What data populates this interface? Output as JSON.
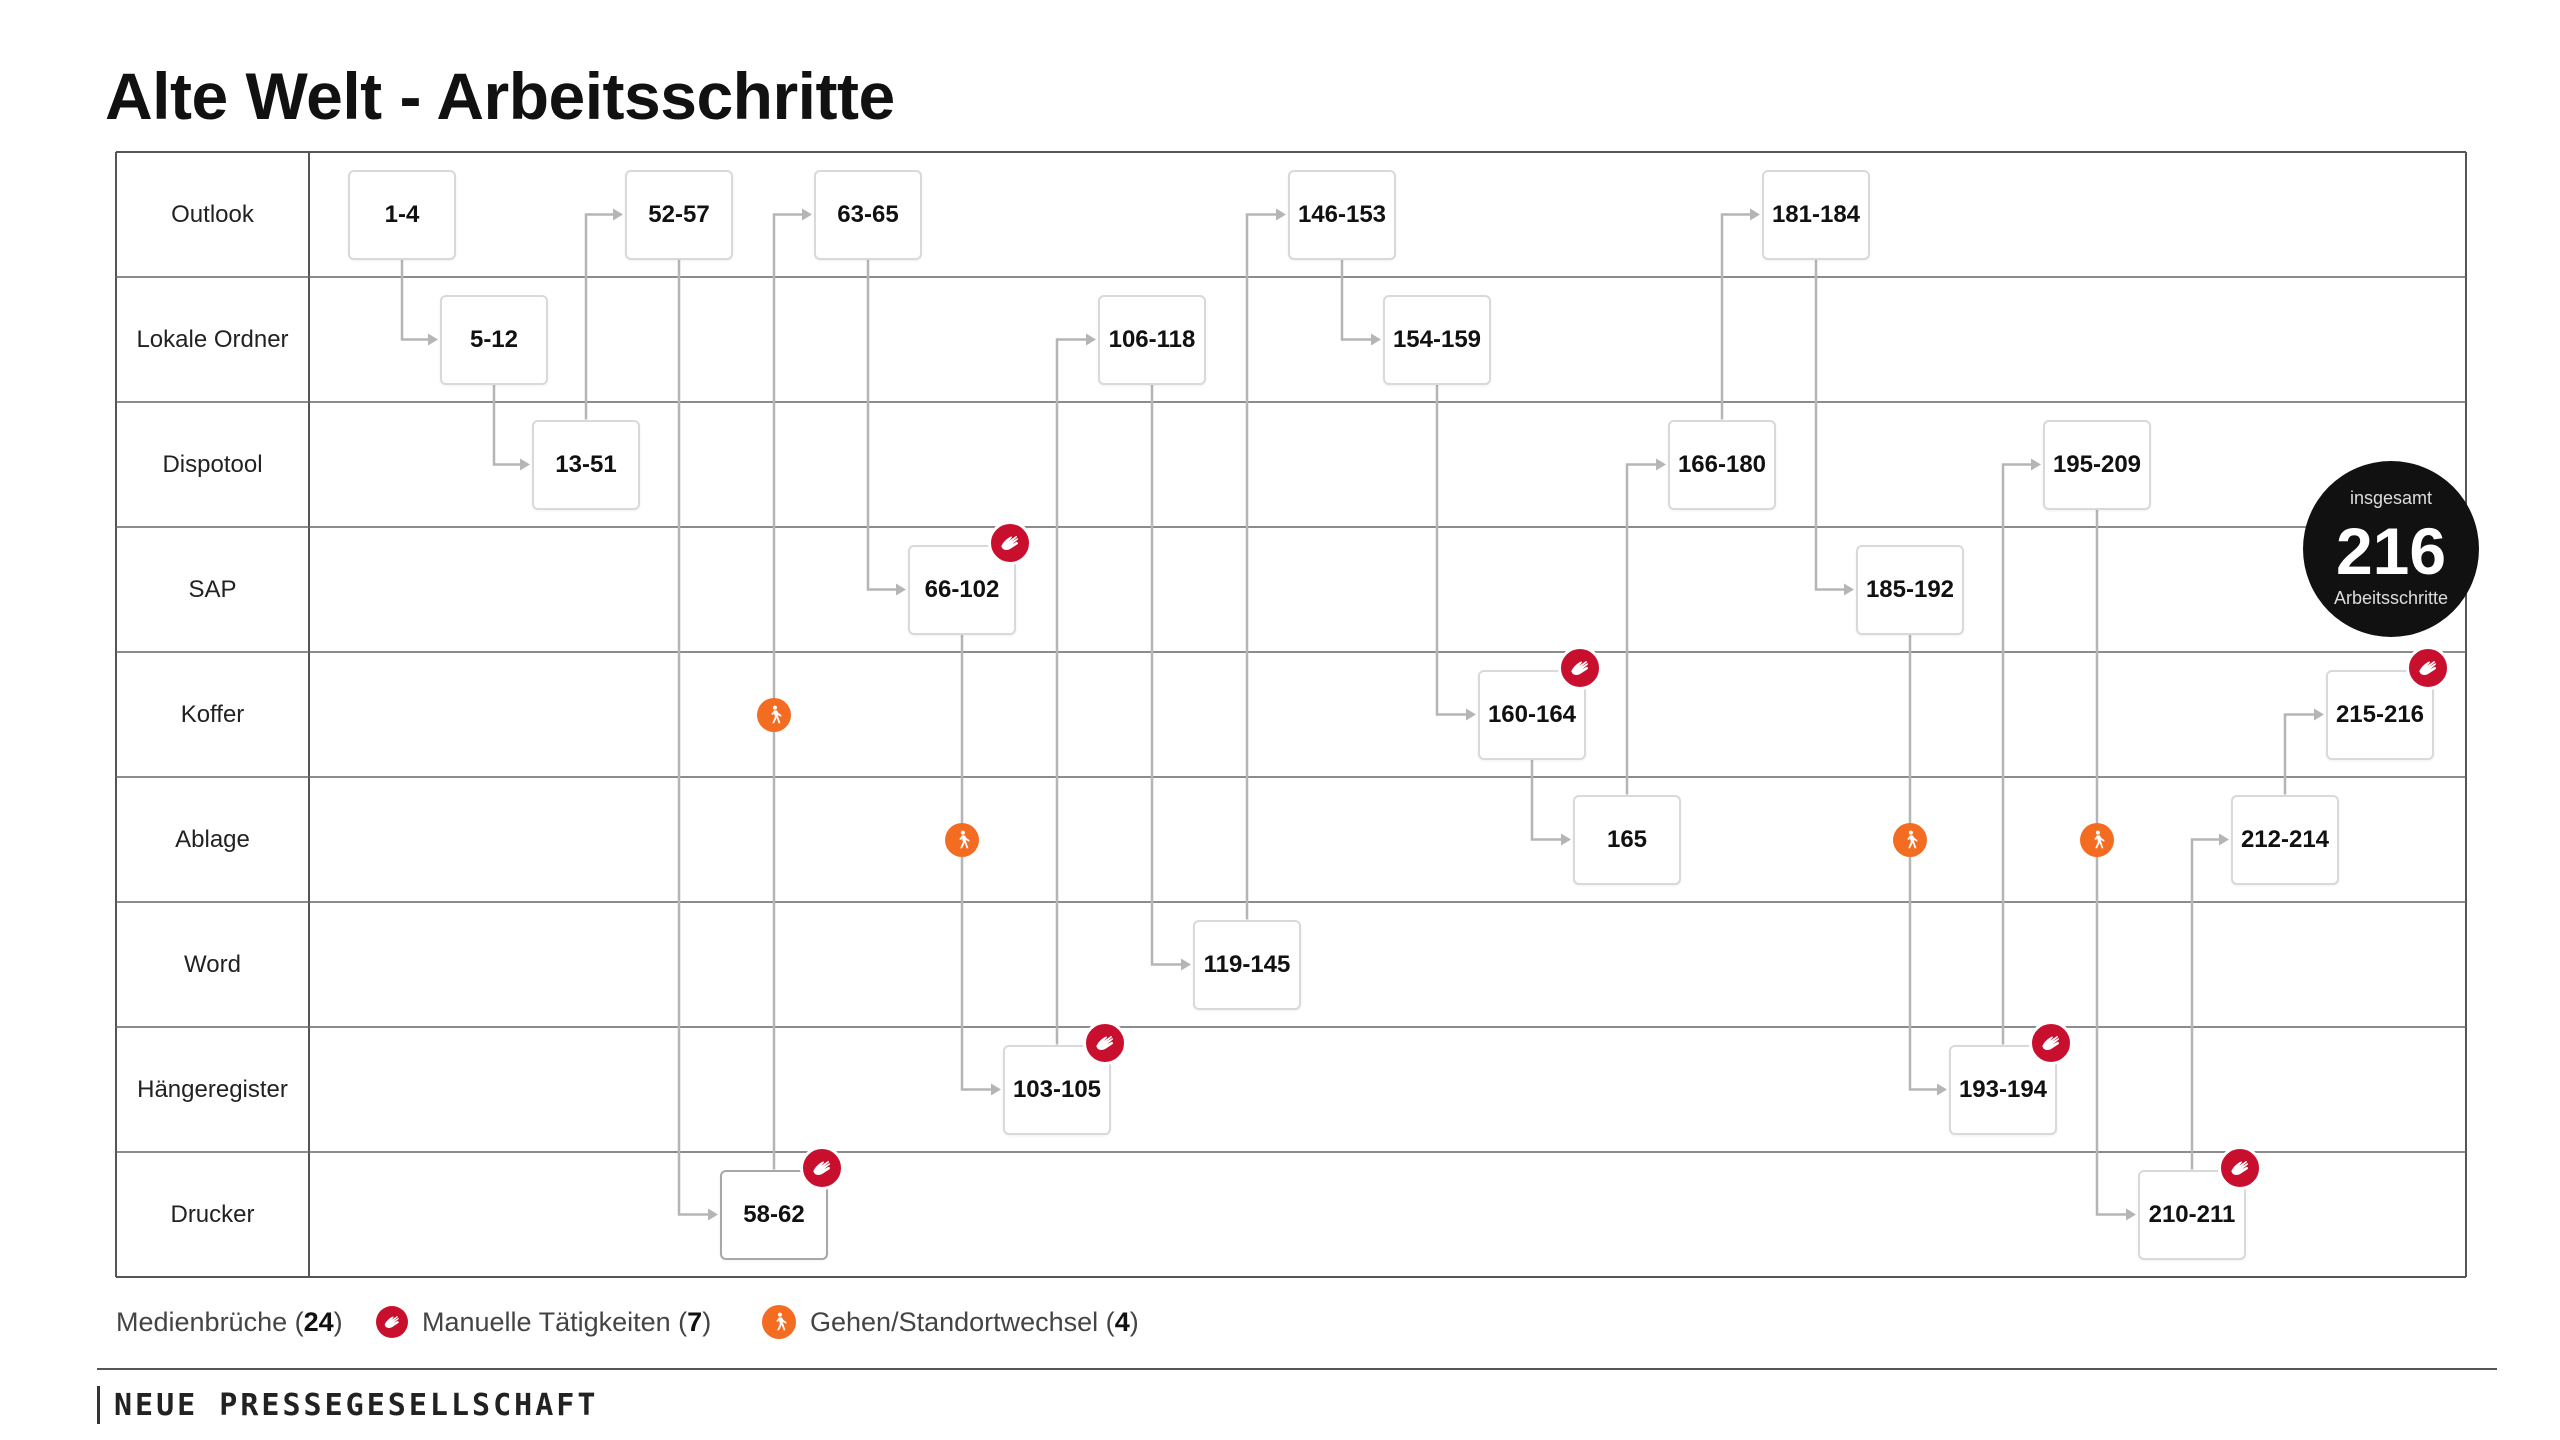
{
  "title": "Alte Welt - Arbeitsschritte",
  "lanes": [
    "Outlook",
    "Lokale Ordner",
    "Dispotool",
    "SAP",
    "Koffer",
    "Ablage",
    "Word",
    "Hängeregister",
    "Drucker"
  ],
  "steps": [
    {
      "label": "1-4",
      "lane": 0
    },
    {
      "label": "5-12",
      "lane": 1
    },
    {
      "label": "13-51",
      "lane": 2
    },
    {
      "label": "52-57",
      "lane": 0
    },
    {
      "label": "58-62",
      "lane": 8,
      "manual": true
    },
    {
      "label": "63-65",
      "lane": 0
    },
    {
      "label": "66-102",
      "lane": 3,
      "manual": true
    },
    {
      "label": "103-105",
      "lane": 7,
      "manual": true
    },
    {
      "label": "106-118",
      "lane": 1
    },
    {
      "label": "119-145",
      "lane": 6
    },
    {
      "label": "146-153",
      "lane": 0
    },
    {
      "label": "154-159",
      "lane": 1
    },
    {
      "label": "160-164",
      "lane": 4,
      "manual": true
    },
    {
      "label": "165",
      "lane": 5
    },
    {
      "label": "166-180",
      "lane": 2
    },
    {
      "label": "181-184",
      "lane": 0
    },
    {
      "label": "185-192",
      "lane": 3
    },
    {
      "label": "193-194",
      "lane": 7,
      "manual": true
    },
    {
      "label": "195-209",
      "lane": 2
    },
    {
      "label": "210-211",
      "lane": 8,
      "manual": true
    },
    {
      "label": "212-214",
      "lane": 5
    },
    {
      "label": "215-216",
      "lane": 4,
      "manual": true
    }
  ],
  "walk_markers": [
    {
      "lane": 4,
      "between": [
        "58-62",
        "63-65"
      ]
    },
    {
      "lane": 5,
      "between": [
        "66-102",
        "103-105"
      ]
    },
    {
      "lane": 5,
      "between": [
        "185-192",
        "193-194"
      ]
    },
    {
      "lane": 5,
      "between": [
        "195-209",
        "210-211"
      ]
    }
  ],
  "total": {
    "top_label": "insgesamt",
    "value": "216",
    "bottom_label": "Arbeitsschritte"
  },
  "legend": {
    "media_label": "Medienbrüche (",
    "media_count": "24",
    "media_close": ")",
    "manual_label": "Manuelle Tätigkeiten (",
    "manual_count": "7",
    "manual_close": ")",
    "walk_label": "Gehen/Standortwechsel (",
    "walk_count": "4",
    "walk_close": ")"
  },
  "colors": {
    "manual": "#c8102e",
    "walk": "#f36c21",
    "connector": "#b5b5b5",
    "total_bg": "#111111"
  },
  "icons": {
    "manual": "hand-icon",
    "walk": "walking-person-icon"
  },
  "brand": "NEUE PRESSEGESELLSCHAFT"
}
